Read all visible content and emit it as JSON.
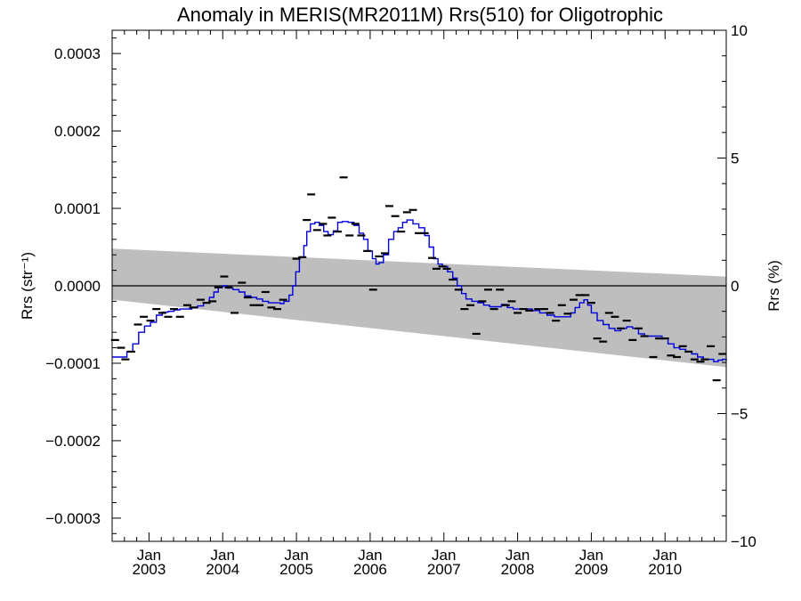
{
  "chart_data": {
    "type": "line",
    "title": "Anomaly in MERIS(MR2011M) Rrs(510) for Oligotrophic",
    "ylabel_left": "Rrs (str⁻¹)",
    "ylabel_right": "Rrs (%)",
    "xlim": [
      2002.5,
      2010.83
    ],
    "ylim": [
      -0.00033,
      0.00033
    ],
    "ylim_right": [
      -10,
      10
    ],
    "yticks_left": [
      {
        "value": 0.0003,
        "label": "0.0003"
      },
      {
        "value": 0.0002,
        "label": "0.0002"
      },
      {
        "value": 0.0001,
        "label": "0.0001"
      },
      {
        "value": 0.0,
        "label": "0.0000"
      },
      {
        "value": -0.0001,
        "label": "−0.0001"
      },
      {
        "value": -0.0002,
        "label": "−0.0002"
      },
      {
        "value": -0.0003,
        "label": "−0.0003"
      }
    ],
    "yticks_right": [
      {
        "value": 10,
        "label": "10"
      },
      {
        "value": 5,
        "label": "5"
      },
      {
        "value": 0,
        "label": "0"
      },
      {
        "value": -5,
        "label": "−5"
      },
      {
        "value": -10,
        "label": "−10"
      }
    ],
    "xticks": [
      {
        "value": 2003.0,
        "month": "Jan",
        "year": "2003"
      },
      {
        "value": 2004.0,
        "month": "Jan",
        "year": "2004"
      },
      {
        "value": 2005.0,
        "month": "Jan",
        "year": "2005"
      },
      {
        "value": 2006.0,
        "month": "Jan",
        "year": "2006"
      },
      {
        "value": 2007.0,
        "month": "Jan",
        "year": "2007"
      },
      {
        "value": 2008.0,
        "month": "Jan",
        "year": "2008"
      },
      {
        "value": 2009.0,
        "month": "Jan",
        "year": "2009"
      },
      {
        "value": 2010.0,
        "month": "Jan",
        "year": "2010"
      }
    ],
    "band": {
      "color": "#bebebe",
      "upper": [
        [
          2002.5,
          4.8e-05
        ],
        [
          2010.83,
          1.2e-05
        ]
      ],
      "lower": [
        [
          2002.5,
          -1.8e-05
        ],
        [
          2010.83,
          -0.000105
        ]
      ]
    },
    "zero_line": true,
    "series": [
      {
        "style": "step",
        "color": "#0000dd",
        "points": [
          [
            2002.5,
            -9.2e-05
          ],
          [
            2002.62,
            -9.2e-05
          ],
          [
            2002.7,
            -8.5e-05
          ],
          [
            2002.78,
            -7.5e-05
          ],
          [
            2002.86,
            -6e-05
          ],
          [
            2002.94,
            -5.2e-05
          ],
          [
            2003.02,
            -4.7e-05
          ],
          [
            2003.1,
            -3.8e-05
          ],
          [
            2003.18,
            -3.4e-05
          ],
          [
            2003.26,
            -3.3e-05
          ],
          [
            2003.34,
            -3.1e-05
          ],
          [
            2003.42,
            -3e-05
          ],
          [
            2003.5,
            -3e-05
          ],
          [
            2003.58,
            -2.8e-05
          ],
          [
            2003.66,
            -2.6e-05
          ],
          [
            2003.74,
            -2.2e-05
          ],
          [
            2003.82,
            -1.5e-05
          ],
          [
            2003.88,
            -8e-06
          ],
          [
            2003.94,
            -2e-06
          ],
          [
            2004.0,
            0.0
          ],
          [
            2004.06,
            -3e-06
          ],
          [
            2004.14,
            -5e-06
          ],
          [
            2004.22,
            -8e-06
          ],
          [
            2004.3,
            -1.3e-05
          ],
          [
            2004.38,
            -1.5e-05
          ],
          [
            2004.46,
            -1.7e-05
          ],
          [
            2004.54,
            -2e-05
          ],
          [
            2004.62,
            -2.2e-05
          ],
          [
            2004.7,
            -2.2e-05
          ],
          [
            2004.78,
            -2.3e-05
          ],
          [
            2004.83,
            -2e-05
          ],
          [
            2004.9,
            -1.2e-05
          ],
          [
            2004.95,
            0.0
          ],
          [
            2004.99,
            1.8e-05
          ],
          [
            2005.04,
            3.7e-05
          ],
          [
            2005.1,
            5.2e-05
          ],
          [
            2005.14,
            7e-05
          ],
          [
            2005.19,
            8e-05
          ],
          [
            2005.25,
            8.2e-05
          ],
          [
            2005.31,
            7.8e-05
          ],
          [
            2005.37,
            7e-05
          ],
          [
            2005.43,
            6.6e-05
          ],
          [
            2005.5,
            7.1e-05
          ],
          [
            2005.56,
            8.2e-05
          ],
          [
            2005.62,
            8.3e-05
          ],
          [
            2005.7,
            8.2e-05
          ],
          [
            2005.78,
            7.8e-05
          ],
          [
            2005.85,
            6.8e-05
          ],
          [
            2005.91,
            6e-05
          ],
          [
            2005.97,
            4.5e-05
          ],
          [
            2006.03,
            3.5e-05
          ],
          [
            2006.08,
            2.8e-05
          ],
          [
            2006.12,
            3e-05
          ],
          [
            2006.18,
            4e-05
          ],
          [
            2006.25,
            6e-05
          ],
          [
            2006.32,
            7e-05
          ],
          [
            2006.38,
            7.5e-05
          ],
          [
            2006.44,
            8.2e-05
          ],
          [
            2006.5,
            8.5e-05
          ],
          [
            2006.58,
            8e-05
          ],
          [
            2006.66,
            7.5e-05
          ],
          [
            2006.74,
            6.5e-05
          ],
          [
            2006.8,
            5e-05
          ],
          [
            2006.86,
            3.5e-05
          ],
          [
            2006.92,
            2.8e-05
          ],
          [
            2006.98,
            2.5e-05
          ],
          [
            2007.05,
            1.8e-05
          ],
          [
            2007.12,
            1e-05
          ],
          [
            2007.18,
            0.0
          ],
          [
            2007.24,
            -1e-05
          ],
          [
            2007.3,
            -1.7e-05
          ],
          [
            2007.38,
            -2e-05
          ],
          [
            2007.46,
            -2.2e-05
          ],
          [
            2007.54,
            -2.5e-05
          ],
          [
            2007.62,
            -2.7e-05
          ],
          [
            2007.7,
            -2.7e-05
          ],
          [
            2007.78,
            -2.4e-05
          ],
          [
            2007.86,
            -2.8e-05
          ],
          [
            2007.94,
            -3e-05
          ],
          [
            2008.0,
            -3e-05
          ],
          [
            2008.1,
            -3e-05
          ],
          [
            2008.2,
            -3.2e-05
          ],
          [
            2008.3,
            -3.5e-05
          ],
          [
            2008.4,
            -3.8e-05
          ],
          [
            2008.5,
            -4e-05
          ],
          [
            2008.58,
            -4e-05
          ],
          [
            2008.66,
            -4e-05
          ],
          [
            2008.72,
            -3.5e-05
          ],
          [
            2008.78,
            -2.8e-05
          ],
          [
            2008.84,
            -2.2e-05
          ],
          [
            2008.9,
            -1.8e-05
          ],
          [
            2008.95,
            -2.5e-05
          ],
          [
            2009.0,
            -3.5e-05
          ],
          [
            2009.08,
            -4.5e-05
          ],
          [
            2009.16,
            -5e-05
          ],
          [
            2009.24,
            -5.5e-05
          ],
          [
            2009.32,
            -5.8e-05
          ],
          [
            2009.4,
            -5.5e-05
          ],
          [
            2009.48,
            -5.3e-05
          ],
          [
            2009.56,
            -5.5e-05
          ],
          [
            2009.64,
            -6.2e-05
          ],
          [
            2009.72,
            -6.5e-05
          ],
          [
            2009.8,
            -6.5e-05
          ],
          [
            2009.88,
            -6.5e-05
          ],
          [
            2009.96,
            -6.8e-05
          ],
          [
            2010.04,
            -7.5e-05
          ],
          [
            2010.12,
            -8e-05
          ],
          [
            2010.2,
            -8.2e-05
          ],
          [
            2010.28,
            -8.5e-05
          ],
          [
            2010.36,
            -8.8e-05
          ],
          [
            2010.44,
            -9.2e-05
          ],
          [
            2010.52,
            -9.5e-05
          ],
          [
            2010.6,
            -9.5e-05
          ],
          [
            2010.66,
            -9.8e-05
          ],
          [
            2010.72,
            -9.6e-05
          ],
          [
            2010.78,
            -9.5e-05
          ],
          [
            2010.83,
            -9.7e-05
          ]
        ]
      }
    ],
    "markers": [
      [
        2002.54,
        -7e-05
      ],
      [
        2002.62,
        -8e-05
      ],
      [
        2002.68,
        -9.5e-05
      ],
      [
        2002.76,
        -8.5e-05
      ],
      [
        2002.85,
        -5e-05
      ],
      [
        2002.93,
        -4e-05
      ],
      [
        2003.02,
        -4.5e-05
      ],
      [
        2003.1,
        -3e-05
      ],
      [
        2003.18,
        -3.5e-05
      ],
      [
        2003.26,
        -4e-05
      ],
      [
        2003.34,
        -3e-05
      ],
      [
        2003.42,
        -4e-05
      ],
      [
        2003.52,
        -2.5e-05
      ],
      [
        2003.6,
        -2.8e-05
      ],
      [
        2003.7,
        -1.8e-05
      ],
      [
        2003.78,
        -2.2e-05
      ],
      [
        2003.86,
        -2e-05
      ],
      [
        2003.94,
        -2e-06
      ],
      [
        2004.02,
        1.2e-05
      ],
      [
        2004.08,
        -2e-06
      ],
      [
        2004.16,
        -3.5e-05
      ],
      [
        2004.26,
        4e-06
      ],
      [
        2004.34,
        -1.5e-05
      ],
      [
        2004.42,
        -2.5e-05
      ],
      [
        2004.5,
        -2.5e-05
      ],
      [
        2004.58,
        -8e-06
      ],
      [
        2004.66,
        -2.8e-05
      ],
      [
        2004.74,
        -3e-05
      ],
      [
        2004.82,
        -1.8e-05
      ],
      [
        2005.0,
        3.5e-05
      ],
      [
        2005.08,
        3.7e-05
      ],
      [
        2005.14,
        8.5e-05
      ],
      [
        2005.2,
        0.000118
      ],
      [
        2005.28,
        7.2e-05
      ],
      [
        2005.36,
        8e-05
      ],
      [
        2005.42,
        6.5e-05
      ],
      [
        2005.48,
        8.8e-05
      ],
      [
        2005.56,
        7e-05
      ],
      [
        2005.64,
        0.00014
      ],
      [
        2005.72,
        6.5e-05
      ],
      [
        2005.8,
        8e-05
      ],
      [
        2005.88,
        6.5e-05
      ],
      [
        2005.96,
        4.5e-05
      ],
      [
        2006.04,
        -5e-06
      ],
      [
        2006.12,
        3.8e-05
      ],
      [
        2006.2,
        4.2e-05
      ],
      [
        2006.26,
        0.000103
      ],
      [
        2006.34,
        9e-05
      ],
      [
        2006.42,
        7e-05
      ],
      [
        2006.5,
        9.5e-05
      ],
      [
        2006.58,
        9.8e-05
      ],
      [
        2006.66,
        6.8e-05
      ],
      [
        2006.74,
        6.8e-05
      ],
      [
        2006.84,
        3.6e-05
      ],
      [
        2006.9,
        2.2e-05
      ],
      [
        2006.98,
        2.5e-05
      ],
      [
        2007.04,
        2.2e-05
      ],
      [
        2007.12,
        8e-06
      ],
      [
        2007.2,
        -5e-06
      ],
      [
        2007.28,
        -3e-05
      ],
      [
        2007.36,
        -2.5e-05
      ],
      [
        2007.44,
        -6.2e-05
      ],
      [
        2007.52,
        -2e-05
      ],
      [
        2007.6,
        -5e-06
      ],
      [
        2007.68,
        -3e-05
      ],
      [
        2007.76,
        -5e-06
      ],
      [
        2007.84,
        -2.5e-05
      ],
      [
        2007.92,
        -2e-05
      ],
      [
        2008.0,
        -3.5e-05
      ],
      [
        2008.08,
        -3e-05
      ],
      [
        2008.16,
        -3.2e-05
      ],
      [
        2008.28,
        -3e-05
      ],
      [
        2008.36,
        -3e-05
      ],
      [
        2008.44,
        -3.5e-05
      ],
      [
        2008.52,
        -4.5e-05
      ],
      [
        2008.6,
        -2.5e-05
      ],
      [
        2008.68,
        -3.6e-05
      ],
      [
        2008.76,
        -1.8e-05
      ],
      [
        2008.84,
        -1.2e-05
      ],
      [
        2008.92,
        -1.2e-05
      ],
      [
        2009.0,
        -2.2e-05
      ],
      [
        2009.08,
        -6.8e-05
      ],
      [
        2009.16,
        -7.2e-05
      ],
      [
        2009.24,
        -3.5e-05
      ],
      [
        2009.32,
        -4e-05
      ],
      [
        2009.4,
        -5.5e-05
      ],
      [
        2009.48,
        -4.5e-05
      ],
      [
        2009.56,
        -7e-05
      ],
      [
        2009.64,
        -5.5e-05
      ],
      [
        2009.72,
        -6.5e-05
      ],
      [
        2009.84,
        -9.2e-05
      ],
      [
        2009.92,
        -6.8e-05
      ],
      [
        2010.0,
        -6.8e-05
      ],
      [
        2010.08,
        -9e-05
      ],
      [
        2010.16,
        -9.2e-05
      ],
      [
        2010.24,
        -7.8e-05
      ],
      [
        2010.32,
        -8.5e-05
      ],
      [
        2010.4,
        -9.5e-05
      ],
      [
        2010.48,
        -9.8e-05
      ],
      [
        2010.54,
        -9.5e-05
      ],
      [
        2010.62,
        -7.8e-05
      ],
      [
        2010.7,
        -0.000122
      ],
      [
        2010.78,
        -8.8e-05
      ]
    ]
  }
}
